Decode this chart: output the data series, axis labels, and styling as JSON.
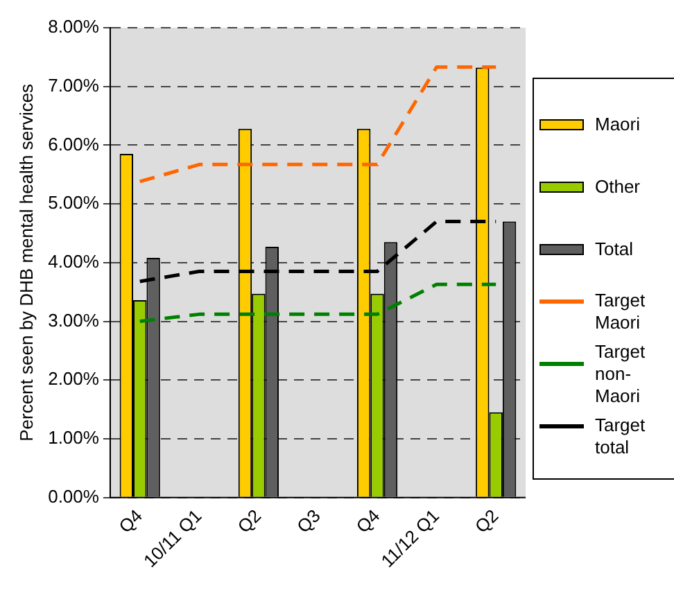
{
  "chart_data": {
    "type": "bar",
    "ylabel": "Percent seen by DHB mental health services",
    "categories": [
      "Q4",
      "10/11 Q1",
      "Q2",
      "Q3",
      "Q4",
      "11/12 Q1",
      "Q2"
    ],
    "series": [
      {
        "name": "Maori",
        "color": "#ffcc00",
        "values": [
          5.85,
          null,
          6.28,
          null,
          6.28,
          null,
          7.32
        ]
      },
      {
        "name": "Other",
        "color": "#99cc00",
        "values": [
          3.36,
          null,
          3.47,
          null,
          3.47,
          null,
          1.45
        ]
      },
      {
        "name": "Total",
        "color": "#5f5f5f",
        "values": [
          4.08,
          null,
          4.27,
          null,
          4.35,
          null,
          4.7
        ]
      },
      {
        "name": "Target Maori",
        "type": "line",
        "color": "#ff6600",
        "line_style": "dashed",
        "values": [
          5.38,
          5.67,
          5.67,
          5.67,
          5.67,
          7.33,
          7.33
        ]
      },
      {
        "name": "Target non-Maori",
        "type": "line",
        "color": "#008000",
        "line_style": "dashed",
        "values": [
          3.0,
          3.12,
          3.12,
          3.12,
          3.12,
          3.63,
          3.63
        ]
      },
      {
        "name": "Target total",
        "type": "line",
        "color": "#000000",
        "line_style": "dashed",
        "values": [
          3.68,
          3.85,
          3.85,
          3.85,
          3.85,
          4.7,
          4.7
        ]
      }
    ],
    "ylim": [
      0,
      8
    ],
    "yticks": [
      {
        "value": 0,
        "label": "0.00%"
      },
      {
        "value": 1,
        "label": "1.00%"
      },
      {
        "value": 2,
        "label": "2.00%"
      },
      {
        "value": 3,
        "label": "3.00%"
      },
      {
        "value": 4,
        "label": "4.00%"
      },
      {
        "value": 5,
        "label": "5.00%"
      },
      {
        "value": 6,
        "label": "6.00%"
      },
      {
        "value": 7,
        "label": "7.00%"
      },
      {
        "value": 8,
        "label": "8.00%"
      }
    ],
    "grid": "y",
    "legend": "right",
    "marker": "none"
  }
}
